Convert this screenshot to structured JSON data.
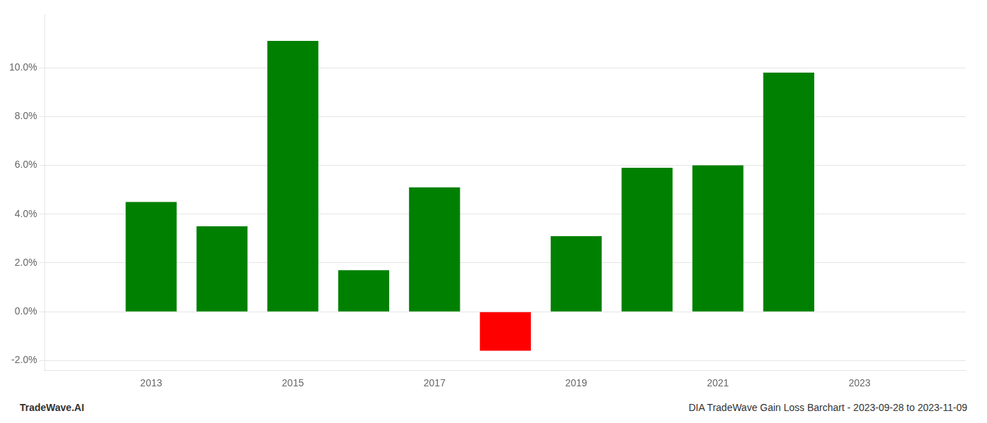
{
  "chart_data": {
    "type": "bar",
    "title": "DIA TradeWave Gain Loss Barchart - 2023-09-28 to 2023-11-09",
    "annotations": [
      "TradeWave.AI"
    ],
    "x": [
      2013,
      2014,
      2015,
      2016,
      2017,
      2018,
      2019,
      2020,
      2021,
      2022
    ],
    "values": [
      0.045,
      0.035,
      0.111,
      0.017,
      0.051,
      -0.016,
      0.031,
      0.059,
      0.06,
      0.098
    ],
    "colors": [
      "#008000",
      "#008000",
      "#008000",
      "#008000",
      "#008000",
      "#ff0000",
      "#008000",
      "#008000",
      "#008000",
      "#008000"
    ],
    "xlim": [
      2011.5,
      2024.5
    ],
    "xticks": [
      2013,
      2015,
      2017,
      2019,
      2021,
      2023
    ],
    "ylim": [
      -0.024,
      0.122
    ],
    "yticks": [
      {
        "value": -0.02,
        "label": "-2.0%"
      },
      {
        "value": 0.0,
        "label": "0.0%"
      },
      {
        "value": 0.02,
        "label": "2.0%"
      },
      {
        "value": 0.04,
        "label": "4.0%"
      },
      {
        "value": 0.06,
        "label": "6.0%"
      },
      {
        "value": 0.08,
        "label": "8.0%"
      },
      {
        "value": 0.1,
        "label": "10.0%"
      }
    ],
    "grid": true
  }
}
